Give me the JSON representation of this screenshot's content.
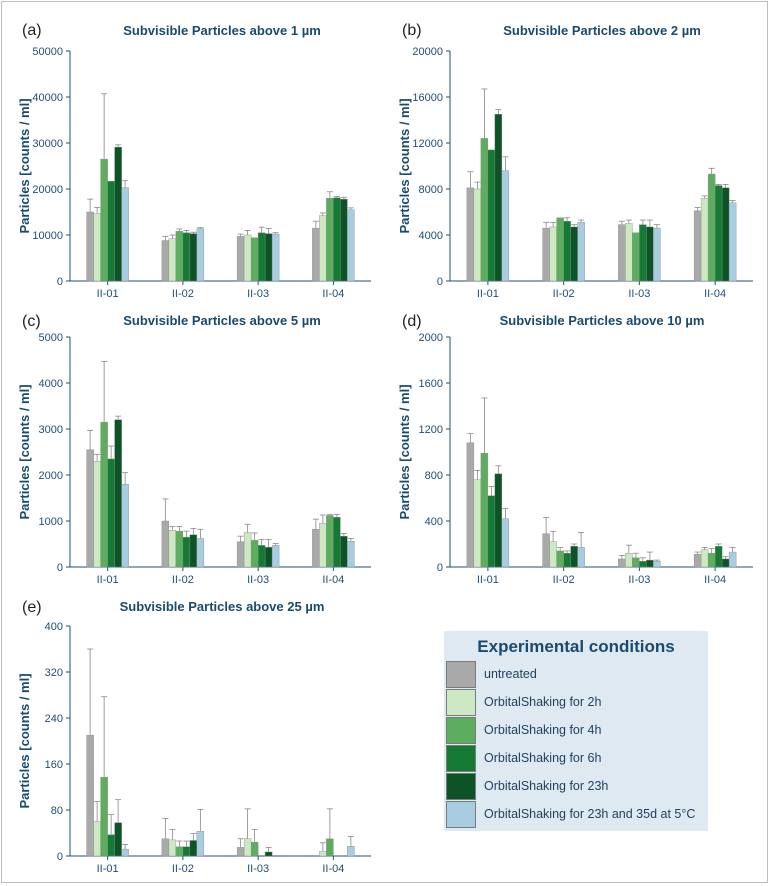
{
  "chart_data": [
    {
      "panel_label": "(a)",
      "title": "Subvisible Particles above 1 µm",
      "ylabel": "Particles [counts / ml]",
      "type": "bar",
      "categories": [
        "II-01",
        "II-02",
        "II-03",
        "II-04"
      ],
      "ylim": [
        0,
        50000
      ],
      "yticks": [
        "0",
        "10000",
        "20000",
        "30000",
        "40000",
        "50000"
      ],
      "values": [
        [
          15000,
          14700,
          26500,
          21700,
          29100,
          20300
        ],
        [
          8800,
          9200,
          10800,
          10500,
          10300,
          11400
        ],
        [
          9700,
          10000,
          9400,
          10500,
          10300,
          10200
        ],
        [
          11500,
          14200,
          18000,
          18100,
          17800,
          15500
        ]
      ],
      "errors": [
        [
          2800,
          1300,
          14200,
          0,
          500,
          1500
        ],
        [
          900,
          800,
          500,
          500,
          300,
          200
        ],
        [
          500,
          1000,
          0,
          1200,
          1100,
          300
        ],
        [
          1500,
          600,
          1400,
          300,
          400,
          400
        ]
      ]
    },
    {
      "panel_label": "(b)",
      "title": "Subvisible Particles above 2 µm",
      "ylabel": "Particles [counts / ml]",
      "type": "bar",
      "categories": [
        "II-01",
        "II-02",
        "II-03",
        "II-04"
      ],
      "ylim": [
        0,
        20000
      ],
      "yticks": [
        "0",
        "4000",
        "8000",
        "12000",
        "16000",
        "20000"
      ],
      "values": [
        [
          8100,
          8000,
          12400,
          11400,
          14500,
          9600
        ],
        [
          4600,
          4700,
          5500,
          5200,
          4700,
          5100
        ],
        [
          4900,
          5000,
          4200,
          4900,
          4700,
          4600
        ],
        [
          6100,
          7200,
          9300,
          8300,
          8100,
          6800
        ]
      ],
      "errors": [
        [
          1400,
          600,
          4300,
          0,
          400,
          1200
        ],
        [
          500,
          400,
          0,
          300,
          200,
          200
        ],
        [
          300,
          300,
          0,
          400,
          600,
          300
        ],
        [
          300,
          200,
          500,
          100,
          300,
          200
        ]
      ]
    },
    {
      "panel_label": "(c)",
      "title": "Subvisible Particles above 5 µm",
      "ylabel": "Particles [counts / ml]",
      "type": "bar",
      "categories": [
        "II-01",
        "II-02",
        "II-03",
        "II-04"
      ],
      "ylim": [
        0,
        5000
      ],
      "yticks": [
        "0",
        "1000",
        "2000",
        "3000",
        "4000",
        "5000"
      ],
      "values": [
        [
          2550,
          2300,
          3150,
          2350,
          3200,
          1800
        ],
        [
          1000,
          800,
          780,
          650,
          700,
          620
        ],
        [
          550,
          750,
          580,
          470,
          430,
          470
        ],
        [
          820,
          950,
          1120,
          1080,
          670,
          560
        ]
      ],
      "errors": [
        [
          420,
          150,
          1320,
          280,
          80,
          250
        ],
        [
          480,
          80,
          100,
          130,
          140,
          200
        ],
        [
          120,
          180,
          160,
          130,
          170,
          40
        ],
        [
          220,
          180,
          20,
          60,
          60,
          60
        ]
      ]
    },
    {
      "panel_label": "(d)",
      "title": "Subvisible Particles above 10 µm",
      "ylabel": "Particles [counts / ml]",
      "type": "bar",
      "categories": [
        "II-01",
        "II-02",
        "II-03",
        "II-04"
      ],
      "ylim": [
        0,
        2000
      ],
      "yticks": [
        "0",
        "400",
        "800",
        "1200",
        "1600",
        "2000"
      ],
      "values": [
        [
          1080,
          760,
          990,
          620,
          810,
          420
        ],
        [
          290,
          220,
          140,
          120,
          180,
          170
        ],
        [
          70,
          120,
          80,
          50,
          60,
          50
        ],
        [
          110,
          150,
          120,
          180,
          70,
          130
        ]
      ],
      "errors": [
        [
          80,
          80,
          480,
          80,
          70,
          90
        ],
        [
          140,
          90,
          30,
          20,
          20,
          130
        ],
        [
          30,
          70,
          40,
          30,
          70,
          10
        ],
        [
          20,
          20,
          40,
          20,
          20,
          40
        ]
      ]
    },
    {
      "panel_label": "(e)",
      "title": "Subvisible Particles above 25 µm",
      "ylabel": "Particles [counts / ml]",
      "type": "bar",
      "categories": [
        "II-01",
        "II-02",
        "II-03",
        "II-04"
      ],
      "ylim": [
        0,
        400
      ],
      "yticks": [
        "0",
        "80",
        "160",
        "240",
        "320",
        "400"
      ],
      "values": [
        [
          210,
          60,
          137,
          37,
          58,
          12
        ],
        [
          30,
          28,
          16,
          16,
          27,
          43
        ],
        [
          15,
          30,
          24,
          0,
          7,
          0
        ],
        [
          0,
          8,
          30,
          0,
          0,
          17
        ]
      ],
      "errors": [
        [
          150,
          35,
          140,
          35,
          40,
          8
        ],
        [
          35,
          18,
          10,
          10,
          12,
          38
        ],
        [
          15,
          52,
          22,
          0,
          8,
          0
        ],
        [
          0,
          15,
          52,
          0,
          0,
          17
        ]
      ]
    }
  ],
  "legend": {
    "title": "Experimental conditions",
    "items": [
      {
        "label": "untreated",
        "color": "#a9a9a9"
      },
      {
        "label": "OrbitalShaking for 2h",
        "color": "#cde9c4"
      },
      {
        "label": "OrbitalShaking for 4h",
        "color": "#5cae5e"
      },
      {
        "label": "OrbitalShaking for 6h",
        "color": "#157a34"
      },
      {
        "label": "OrbitalShaking for 23h",
        "color": "#0c5426"
      },
      {
        "label": "OrbitalShaking for 23h and 35d at 5°C",
        "color": "#a8cde0"
      }
    ]
  }
}
